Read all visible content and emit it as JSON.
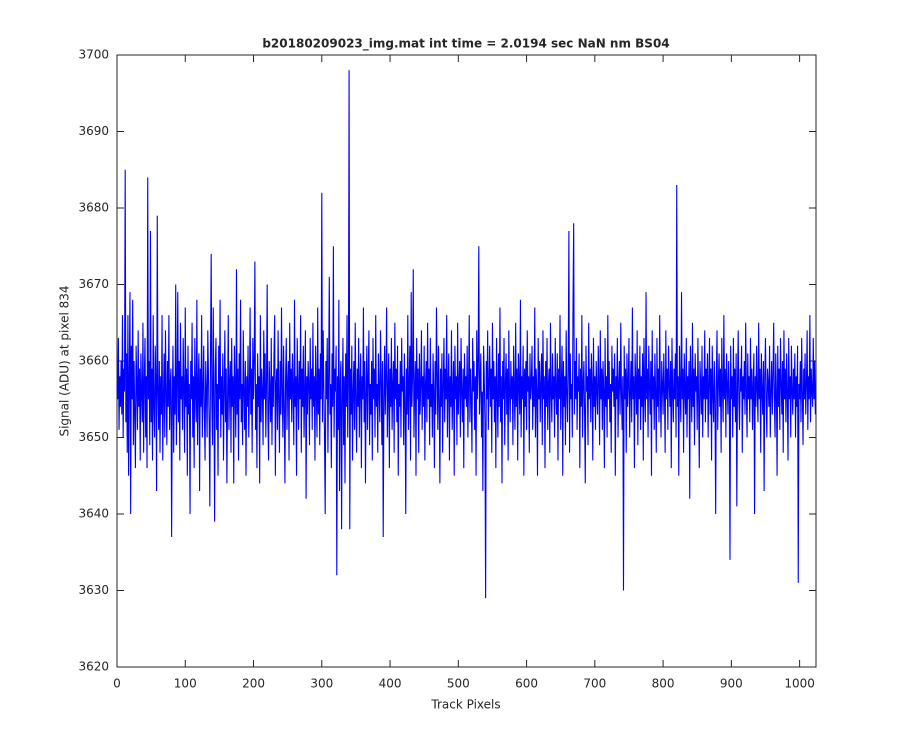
{
  "chart_data": {
    "type": "line",
    "title": "b20180209023_img.mat int time = 2.0194 sec  NaN nm BS04",
    "x_label": "Track Pixels",
    "y_label": "Signal (ADU) at pixel 834",
    "xlim": [
      0,
      1024
    ],
    "ylim": [
      3620,
      3700
    ],
    "xticks": [
      0,
      100,
      200,
      300,
      400,
      500,
      600,
      700,
      800,
      900,
      1000
    ],
    "yticks": [
      3620,
      3630,
      3640,
      3650,
      3660,
      3670,
      3680,
      3690,
      3700
    ],
    "grid": false,
    "series": [
      {
        "color": "#0000ff",
        "values": [
          3657,
          3655,
          3663,
          3651,
          3658,
          3654,
          3660,
          3653,
          3666,
          3650,
          3659,
          3656,
          3685,
          3652,
          3661,
          3648,
          3666,
          3645,
          3658,
          3669,
          3640,
          3662,
          3655,
          3668,
          3649,
          3660,
          3653,
          3646,
          3662,
          3657,
          3651,
          3664,
          3654,
          3659,
          3647,
          3661,
          3656,
          3652,
          3665,
          3648,
          3657,
          3663,
          3650,
          3658,
          3646,
          3684,
          3655,
          3660,
          3649,
          3677,
          3652,
          3659,
          3647,
          3666,
          3654,
          3650,
          3662,
          3657,
          3643,
          3679,
          3656,
          3651,
          3660,
          3648,
          3658,
          3653,
          3666,
          3647,
          3655,
          3661,
          3650,
          3664,
          3656,
          3649,
          3660,
          3654,
          3666,
          3651,
          3657,
          3659,
          3637,
          3655,
          3662,
          3648,
          3658,
          3653,
          3670,
          3649,
          3656,
          3669,
          3652,
          3660,
          3647,
          3665,
          3655,
          3658,
          3651,
          3663,
          3656,
          3648,
          3667,
          3654,
          3659,
          3645,
          3662,
          3653,
          3657,
          3640,
          3660,
          3655,
          3665,
          3650,
          3658,
          3646,
          3663,
          3656,
          3652,
          3668,
          3649,
          3657,
          3661,
          3643,
          3659,
          3654,
          3666,
          3650,
          3656,
          3662,
          3653,
          3647,
          3660,
          3656,
          3650,
          3664,
          3658,
          3652,
          3641,
          3661,
          3674,
          3654,
          3649,
          3667,
          3656,
          3639,
          3659,
          3663,
          3651,
          3657,
          3645,
          3662,
          3655,
          3668,
          3650,
          3658,
          3653,
          3661,
          3647,
          3656,
          3664,
          3652,
          3659,
          3644,
          3655,
          3666,
          3651,
          3657,
          3660,
          3648,
          3663,
          3654,
          3658,
          3644,
          3662,
          3656,
          3650,
          3672,
          3653,
          3659,
          3647,
          3661,
          3655,
          3668,
          3652,
          3657,
          3649,
          3664,
          3656,
          3651,
          3660,
          3645,
          3658,
          3654,
          3662,
          3650,
          3656,
          3667,
          3653,
          3659,
          3648,
          3663,
          3655,
          3660,
          3673,
          3651,
          3657,
          3646,
          3661,
          3654,
          3658,
          3644,
          3666,
          3652,
          3659,
          3656,
          3649,
          3664,
          3655,
          3661,
          3650,
          3657,
          3670,
          3653,
          3647,
          3660,
          3656,
          3652,
          3663,
          3649,
          3658,
          3654,
          3661,
          3666,
          3645,
          3657,
          3659,
          3651,
          3664,
          3655,
          3648,
          3660,
          3653,
          3667,
          3656,
          3650,
          3662,
          3654,
          3644,
          3658,
          3663,
          3651,
          3657,
          3660,
          3647,
          3665,
          3655,
          3659,
          3652,
          3661,
          3656,
          3649,
          3668,
          3654,
          3658,
          3645,
          3663,
          3657,
          3651,
          3660,
          3655,
          3666,
          3648,
          3659,
          3654,
          3662,
          3650,
          3656,
          3664,
          3642,
          3658,
          3653,
          3660,
          3657,
          3649,
          3663,
          3655,
          3659,
          3651,
          3665,
          3654,
          3658,
          3647,
          3662,
          3656,
          3650,
          3667,
          3653,
          3659,
          3649,
          3661,
          3655,
          3682,
          3652,
          3664,
          3657,
          3650,
          3640,
          3660,
          3655,
          3663,
          3648,
          3658,
          3671,
          3653,
          3657,
          3646,
          3661,
          3654,
          3675,
          3650,
          3659,
          3656,
          3662,
          3632,
          3658,
          3651,
          3668,
          3643,
          3657,
          3660,
          3638,
          3655,
          3663,
          3649,
          3658,
          3644,
          3661,
          3654,
          3666,
          3650,
          3657,
          3698,
          3638,
          3659,
          3653,
          3662,
          3647,
          3656,
          3660,
          3651,
          3665,
          3655,
          3648,
          3659,
          3654,
          3663,
          3650,
          3657,
          3661,
          3646,
          3658,
          3655,
          3667,
          3652,
          3660,
          3644,
          3656,
          3662,
          3651,
          3658,
          3664,
          3649,
          3657,
          3653,
          3660,
          3647,
          3663,
          3655,
          3659,
          3650,
          3666,
          3654,
          3657,
          3648,
          3661,
          3656,
          3652,
          3664,
          3658,
          3649,
          3660,
          3637,
          3655,
          3662,
          3653,
          3658,
          3667,
          3650,
          3656,
          3661,
          3646,
          3659,
          3654,
          3663,
          3651,
          3657,
          3660,
          3648,
          3665,
          3655,
          3659,
          3652,
          3662,
          3645,
          3657,
          3654,
          3660,
          3650,
          3663,
          3656,
          3658,
          3649,
          3661,
          3655,
          3640,
          3659,
          3653,
          3666,
          3651,
          3657,
          3662,
          3647,
          3669,
          3654,
          3658,
          3672,
          3650,
          3656,
          3660,
          3645,
          3663,
          3655,
          3659,
          3648,
          3661,
          3653,
          3657,
          3664,
          3651,
          3658,
          3654,
          3662,
          3647,
          3657,
          3660,
          3652,
          3665,
          3655,
          3659,
          3649,
          3663,
          3654,
          3657,
          3650,
          3661,
          3656,
          3646,
          3660,
          3653,
          3667,
          3658,
          3651,
          3662,
          3655,
          3644,
          3659,
          3654,
          3661,
          3648,
          3657,
          3663,
          3652,
          3659,
          3655,
          3666,
          3650,
          3657,
          3661,
          3647,
          3658,
          3654,
          3664,
          3651,
          3656,
          3660,
          3645,
          3662,
          3655,
          3658,
          3649,
          3665,
          3653,
          3657,
          3660,
          3650,
          3663,
          3656,
          3652,
          3659,
          3646,
          3661,
          3655,
          3658,
          3654,
          3662,
          3650,
          3657,
          3666,
          3652,
          3659,
          3655,
          3648,
          3663,
          3656,
          3660,
          3651,
          3658,
          3645,
          3664,
          3655,
          3659,
          3675,
          3653,
          3657,
          3661,
          3650,
          3656,
          3643,
          3662,
          3658,
          3652,
          3629,
          3660,
          3655,
          3664,
          3651,
          3657,
          3662,
          3654,
          3659,
          3648,
          3665,
          3655,
          3660,
          3652,
          3658,
          3646,
          3663,
          3656,
          3650,
          3661,
          3654,
          3667,
          3652,
          3658,
          3644,
          3660,
          3655,
          3663,
          3649,
          3657,
          3661,
          3653,
          3659,
          3647,
          3664,
          3656,
          3652,
          3660,
          3655,
          3658,
          3649,
          3662,
          3656,
          3651,
          3665,
          3654,
          3659,
          3647,
          3661,
          3657,
          3653,
          3668,
          3650,
          3658,
          3655,
          3662,
          3645,
          3659,
          3654,
          3660,
          3651,
          3664,
          3656,
          3658,
          3648,
          3661,
          3655,
          3657,
          3662,
          3651,
          3658,
          3654,
          3667,
          3650,
          3659,
          3656,
          3645,
          3663,
          3655,
          3660,
          3652,
          3657,
          3661,
          3649,
          3664,
          3655,
          3658,
          3646,
          3660,
          3654,
          3663,
          3651,
          3657,
          3659,
          3648,
          3665,
          3656,
          3652,
          3661,
          3655,
          3658,
          3650,
          3663,
          3656,
          3653,
          3661,
          3647,
          3659,
          3655,
          3666,
          3651,
          3657,
          3662,
          3645,
          3660,
          3654,
          3658,
          3649,
          3664,
          3656,
          3652,
          3659,
          3677,
          3648,
          3661,
          3655,
          3657,
          3650,
          3667,
          3678,
          3653,
          3660,
          3655,
          3663,
          3651,
          3658,
          3656,
          3661,
          3646,
          3659,
          3654,
          3666,
          3650,
          3657,
          3660,
          3653,
          3644,
          3662,
          3656,
          3658,
          3649,
          3665,
          3655,
          3659,
          3652,
          3661,
          3657,
          3647,
          3663,
          3654,
          3658,
          3651,
          3660,
          3656,
          3653,
          3662,
          3657,
          3649,
          3664,
          3655,
          3659,
          3651,
          3660,
          3656,
          3646,
          3663,
          3654,
          3658,
          3650,
          3666,
          3655,
          3660,
          3652,
          3657,
          3648,
          3662,
          3656,
          3659,
          3654,
          3661,
          3645,
          3658,
          3655,
          3663,
          3650,
          3657,
          3660,
          3653,
          3665,
          3656,
          3651,
          3658,
          3630,
          3662,
          3655,
          3659,
          3648,
          3661,
          3654,
          3657,
          3663,
          3650,
          3656,
          3660,
          3652,
          3667,
          3655,
          3658,
          3646,
          3661,
          3657,
          3653,
          3664,
          3649,
          3659,
          3655,
          3662,
          3651,
          3658,
          3654,
          3661,
          3647,
          3663,
          3656,
          3652,
          3669,
          3655,
          3659,
          3650,
          3662,
          3657,
          3653,
          3660,
          3645,
          3664,
          3655,
          3658,
          3651,
          3661,
          3656,
          3648,
          3663,
          3654,
          3659,
          3652,
          3666,
          3656,
          3650,
          3660,
          3657,
          3653,
          3661,
          3656,
          3648,
          3664,
          3655,
          3659,
          3651,
          3662,
          3657,
          3654,
          3660,
          3646,
          3663,
          3656,
          3652,
          3659,
          3655,
          3661,
          3650,
          3683,
          3654,
          3658,
          3645,
          3662,
          3656,
          3652,
          3669,
          3655,
          3659,
          3648,
          3661,
          3656,
          3653,
          3663,
          3650,
          3658,
          3655,
          3660,
          3642,
          3662,
          3657,
          3652,
          3665,
          3654,
          3659,
          3649,
          3661,
          3656,
          3658,
          3651,
          3663,
          3655,
          3646,
          3660,
          3657,
          3653,
          3662,
          3650,
          3658,
          3655,
          3664,
          3652,
          3659,
          3655,
          3661,
          3650,
          3657,
          3663,
          3653,
          3659,
          3647,
          3662,
          3656,
          3652,
          3660,
          3655,
          3640,
          3658,
          3664,
          3651,
          3657,
          3661,
          3654,
          3659,
          3648,
          3663,
          3656,
          3652,
          3666,
          3655,
          3659,
          3650,
          3661,
          3657,
          3653,
          3660,
          3656,
          3634,
          3662,
          3655,
          3658,
          3650,
          3663,
          3654,
          3659,
          3652,
          3661,
          3641,
          3657,
          3664,
          3655,
          3651,
          3659,
          3656,
          3662,
          3648,
          3658,
          3655,
          3660,
          3653,
          3665,
          3656,
          3650,
          3661,
          3655,
          3658,
          3652,
          3663,
          3655,
          3659,
          3651,
          3657,
          3661,
          3640,
          3658,
          3654,
          3662,
          3656,
          3652,
          3665,
          3655,
          3659,
          3648,
          3661,
          3656,
          3653,
          3660,
          3643,
          3658,
          3663,
          3655,
          3650,
          3659,
          3657,
          3654,
          3662,
          3650,
          3656,
          3660,
          3653,
          3658,
          3665,
          3655,
          3650,
          3661,
          3656,
          3645,
          3662,
          3654,
          3659,
          3651,
          3663,
          3657,
          3653,
          3660,
          3648,
          3664,
          3655,
          3659,
          3652,
          3661,
          3656,
          3647,
          3663,
          3655,
          3658,
          3650,
          3662,
          3656,
          3653,
          3659,
          3655,
          3661,
          3650,
          3658,
          3654,
          3662,
          3631,
          3657,
          3655,
          3660,
          3652,
          3663,
          3656,
          3649,
          3659,
          3655,
          3661,
          3653,
          3657,
          3664,
          3651,
          3658,
          3655,
          3666,
          3652,
          3659,
          3656,
          3654,
          3663,
          3655,
          3660,
          3653
        ]
      }
    ]
  }
}
